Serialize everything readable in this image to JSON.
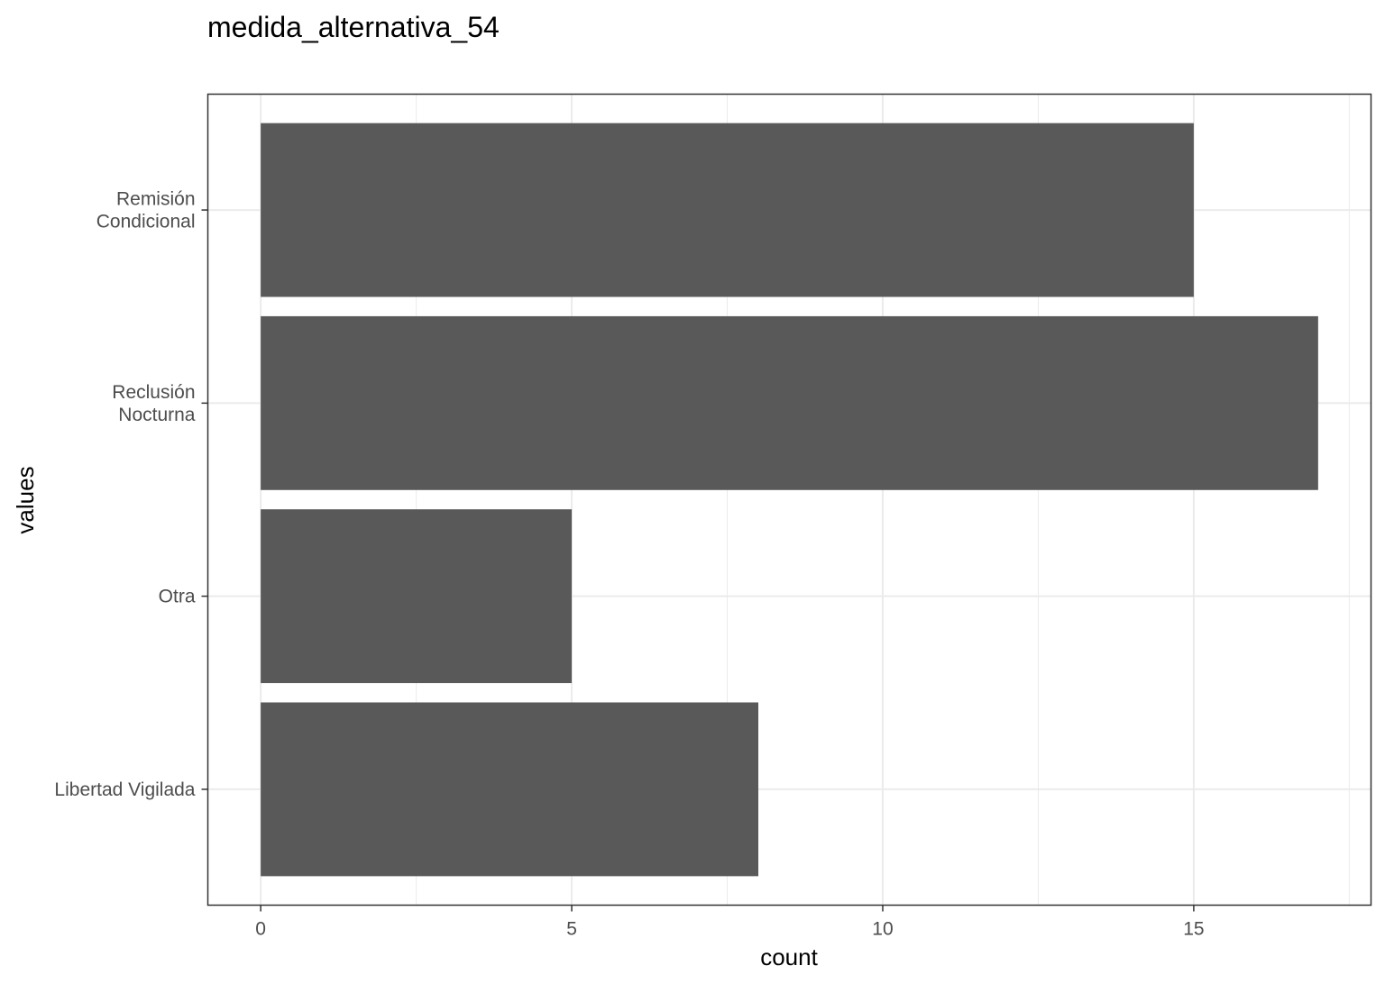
{
  "chart_data": {
    "type": "bar",
    "orientation": "horizontal",
    "title": "medida_alternativa_54",
    "xlabel": "count",
    "ylabel": "values",
    "categories": [
      [
        "Remisión",
        "Condicional"
      ],
      [
        "Reclusión",
        "Nocturna"
      ],
      [
        "Otra"
      ],
      [
        "Libertad Vigilada"
      ]
    ],
    "values": [
      15,
      17,
      5,
      8
    ],
    "xlim": [
      -0.85,
      17.85
    ],
    "xticks": [
      0,
      5,
      10,
      15
    ],
    "xticks_minor": [
      2.5,
      7.5,
      12.5,
      17.5
    ],
    "grid": true,
    "bar_color": "#595959",
    "grid_color": "#ebebeb",
    "panel_border_color": "#333333"
  }
}
